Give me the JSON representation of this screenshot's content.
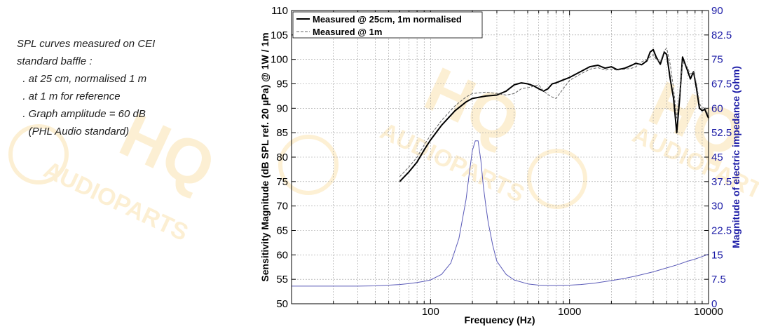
{
  "notes": {
    "lines": [
      "SPL curves measured on CEI",
      "standard baffle :",
      "  . at 25 cm, normalised 1 m",
      "  . at 1 m for reference",
      "  . Graph amplitude = 60 dB",
      "    (PHL Audio standard)"
    ]
  },
  "watermark": {
    "text_main": "HQ",
    "text_sub": "AUDIOPARTS",
    "color": "#fbe3b0"
  },
  "chart_data": {
    "type": "line",
    "xlabel": "Frequency (Hz)",
    "ylabel": "Sensitivity Magnitude (dB SPL ref. 20 µPa) @ 1W / 1m",
    "ylabel_right": "Magnitude of electric impedance (ohm)",
    "x_scale": "log",
    "xlim": [
      10,
      10000
    ],
    "ylim": [
      50,
      110
    ],
    "ylim_right": [
      0,
      90
    ],
    "x_ticks": [
      {
        "value": 100,
        "label": "100"
      },
      {
        "value": 1000,
        "label": "1000"
      },
      {
        "value": 10000,
        "label": "10000"
      }
    ],
    "y_ticks": [
      "50",
      "55",
      "60",
      "65",
      "70",
      "75",
      "80",
      "85",
      "90",
      "95",
      "100",
      "105",
      "110"
    ],
    "y_ticks_right": [
      "0",
      "7.5",
      "15",
      "22.5",
      "30",
      "37.5",
      "45",
      "52.5",
      "60",
      "67.5",
      "75",
      "82.5",
      "90"
    ],
    "grid": true,
    "legend_position": "top-left",
    "colors": {
      "measured_25cm": "#000000",
      "measured_1m": "#666666",
      "impedance": "#5a5ab8",
      "right_axis": "#1a1aa6"
    },
    "series": [
      {
        "name": "Measured @ 25cm, 1m normalised",
        "axis": "left",
        "style": "solid",
        "x": [
          60,
          70,
          80,
          90,
          100,
          120,
          150,
          180,
          200,
          250,
          300,
          350,
          400,
          450,
          500,
          550,
          600,
          650,
          700,
          750,
          800,
          900,
          1000,
          1200,
          1400,
          1600,
          1800,
          2000,
          2200,
          2500,
          2800,
          3000,
          3300,
          3600,
          3800,
          4000,
          4200,
          4500,
          4800,
          5000,
          5300,
          5600,
          5900,
          6200,
          6500,
          7000,
          7400,
          7800,
          8200,
          8600,
          9000,
          9400,
          9800,
          10000
        ],
        "y": [
          75,
          77,
          79,
          81.5,
          83.5,
          86.5,
          89.5,
          91.3,
          92,
          92.5,
          92.7,
          93.5,
          94.8,
          95.2,
          95,
          94.6,
          94,
          93.5,
          94,
          95,
          95.2,
          95.8,
          96.3,
          97.5,
          98.5,
          98.8,
          98.2,
          98.5,
          97.9,
          98.2,
          98.8,
          99.2,
          98.9,
          99.7,
          101.5,
          102,
          100.5,
          99,
          101.5,
          101,
          96,
          92,
          85,
          92,
          100.5,
          98,
          96,
          97.5,
          94,
          90,
          89.5,
          89.8,
          88.5,
          88
        ],
        "note": "values estimated from gridlines"
      },
      {
        "name": "Measured @ 1m",
        "axis": "left",
        "style": "dashed",
        "x": [
          60,
          70,
          80,
          90,
          100,
          120,
          150,
          180,
          200,
          250,
          300,
          350,
          400,
          450,
          500,
          550,
          600,
          650,
          700,
          750,
          800,
          900,
          1000,
          1200,
          1400,
          1600,
          1800,
          2000,
          2200,
          2500,
          2800,
          3000,
          3300,
          3600,
          3800,
          4000,
          4200,
          4500,
          4800,
          5000,
          5300,
          5600,
          5900,
          6200,
          6500,
          7000,
          7400,
          7800,
          8200,
          8600,
          9000,
          9400,
          9800,
          10000
        ],
        "y": [
          76,
          78,
          80,
          82.5,
          84.5,
          87.5,
          90.5,
          92.3,
          93,
          93.3,
          93,
          92.7,
          93,
          94,
          94.2,
          94.5,
          94.8,
          93.5,
          92.8,
          92.3,
          92,
          94,
          95.7,
          97,
          98,
          98.3,
          97.8,
          98,
          97.8,
          98,
          98.2,
          98.5,
          99.5,
          100,
          100.5,
          101,
          100,
          99.5,
          101.8,
          102.3,
          99,
          94,
          88,
          93,
          99.5,
          98.5,
          97,
          97.5,
          95,
          91,
          90,
          90.2,
          89,
          88.5
        ],
        "note": "values estimated from gridlines"
      },
      {
        "name": "",
        "axis": "right",
        "style": "solid",
        "x": [
          10,
          20,
          30,
          40,
          50,
          60,
          70,
          80,
          90,
          100,
          120,
          140,
          160,
          180,
          190,
          200,
          210,
          220,
          230,
          240,
          250,
          260,
          280,
          300,
          350,
          400,
          500,
          600,
          700,
          800,
          1000,
          1200,
          1500,
          2000,
          2500,
          3000,
          4000,
          5000,
          6000,
          7000,
          8000,
          9000,
          10000
        ],
        "y": [
          5.4,
          5.4,
          5.4,
          5.5,
          5.7,
          5.9,
          6.2,
          6.5,
          6.9,
          7.3,
          9,
          12.5,
          20,
          32,
          40,
          47,
          50,
          50,
          44,
          36,
          30,
          25,
          18,
          13,
          9,
          7.3,
          6.1,
          5.7,
          5.6,
          5.6,
          5.7,
          5.9,
          6.3,
          7.1,
          7.8,
          8.5,
          9.8,
          11,
          12,
          13,
          13.7,
          14.5,
          15.2
        ],
        "note": "values estimated from gridlines"
      }
    ]
  }
}
